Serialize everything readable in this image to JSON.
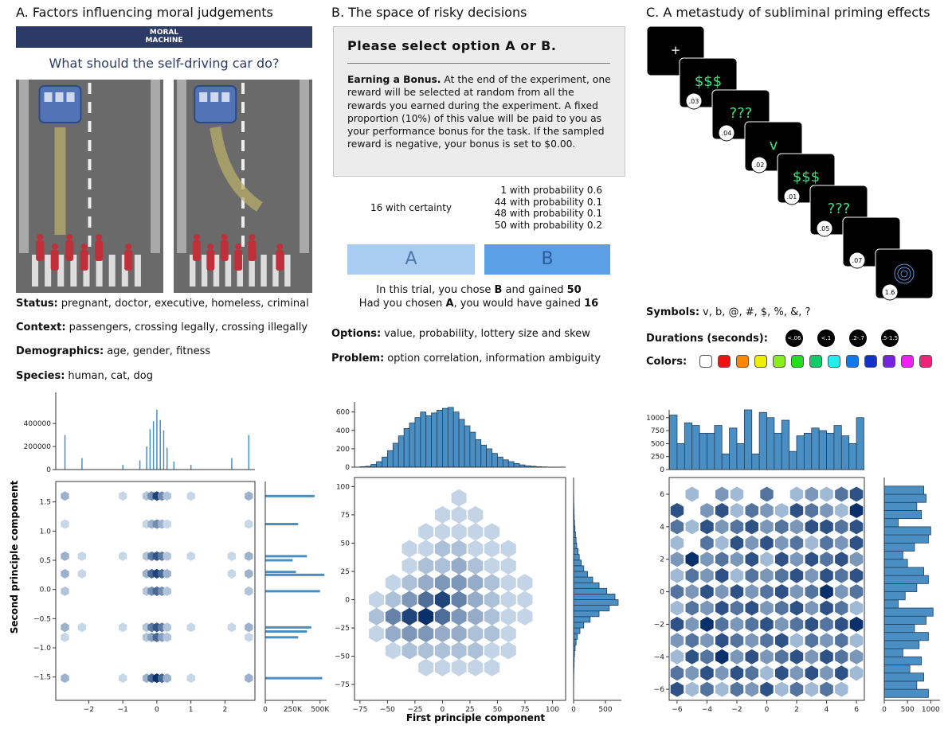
{
  "panel_a": {
    "title": "A. Factors influencing moral judgements",
    "banner": [
      "MORAL",
      "MACHINE"
    ],
    "question": "What should the self-driving car do?",
    "factors": [
      {
        "label": "Status:",
        "text": "pregnant, doctor, executive, homeless, criminal"
      },
      {
        "label": "Context:",
        "text": "passengers, crossing legally, crossing illegally"
      },
      {
        "label": "Demographics:",
        "text": "age, gender, fitness"
      },
      {
        "label": "Species:",
        "text": "human, cat, dog"
      }
    ]
  },
  "panel_b": {
    "title": "B. The space of risky decisions",
    "dialog": {
      "heading": "Please select option A or B.",
      "bonus_label": "Earning a Bonus.",
      "bonus_text": "At the end of the experiment, one reward will be selected at random from all the rewards you earned during the experiment. A fixed proportion (10%) of this value will be paid to you as your performance bonus for the task. If the sampled reward is negative, your bonus is set to $0.00."
    },
    "option_a": "16 with certainty",
    "option_b": [
      "1 with probability 0.6",
      "44 with probability 0.1",
      "48 with probability 0.1",
      "50 with probability 0.2"
    ],
    "buttons": [
      "A",
      "B"
    ],
    "result": [
      [
        "In this trial, you chose ",
        "B",
        " and gained ",
        "50"
      ],
      [
        "Had you chosen ",
        "A",
        ", you would have gained ",
        "16"
      ]
    ],
    "factors": [
      {
        "label": "Options:",
        "text": "value, probability, lottery size and skew"
      },
      {
        "label": "Problem:",
        "text": "option correlation, information ambiguity"
      }
    ]
  },
  "panel_c": {
    "title": "C. A metastudy of subliminal priming effects",
    "trials": [
      {
        "symbol": "+"
      },
      {
        "symbol": "$$$",
        "duration": ".03"
      },
      {
        "symbol": "???",
        "duration": ".04"
      },
      {
        "symbol": "v",
        "duration": ".02"
      },
      {
        "symbol": "$$$",
        "duration": ".01"
      },
      {
        "symbol": "???",
        "duration": ".05"
      },
      {
        "duration": ".07"
      },
      {
        "duration": "1.6"
      }
    ],
    "symbols_label": "Symbols:",
    "symbols": "v, b, @, #, $, %, &, ?",
    "durations_label": "Durations (seconds):",
    "durations": [
      "<.06",
      "<.1",
      ".2-.7",
      ".5-1.5"
    ],
    "colors_label": "Colors:",
    "colors": [
      "#ffffff",
      "#ee1111",
      "#ff8800",
      "#eeee00",
      "#88ee22",
      "#22dd22",
      "#11cc66",
      "#22eeee",
      "#1177ee",
      "#1133cc",
      "#7722dd",
      "#ee22ee",
      "#ee2277"
    ]
  },
  "axis_labels": {
    "x": "First principle component",
    "y": "Second principle component"
  },
  "chart_data": [
    {
      "type": "jointplot",
      "marginal_x": {
        "type": "spikes",
        "x": [
          -2.7,
          -2.2,
          -1.0,
          -0.5,
          -0.3,
          -0.2,
          -0.1,
          0,
          0.1,
          0.2,
          0.3,
          0.5,
          1.0,
          2.2,
          2.7
        ],
        "values": [
          300000,
          100000,
          40000,
          80000,
          200000,
          350000,
          420000,
          520000,
          430000,
          340000,
          190000,
          70000,
          40000,
          100000,
          300000
        ],
        "ylim": [
          0,
          670000
        ],
        "yticks": [
          0,
          200000,
          400000
        ],
        "color": "#4a8fc4"
      },
      "main": {
        "type": "hexbin",
        "x": [
          -2.7,
          -2.2,
          -1.0,
          -0.3,
          -0.15,
          0,
          0.15,
          0.3,
          1.0,
          2.2,
          2.7
        ],
        "y": [
          1.6,
          1.12,
          0.57,
          0.27,
          -0.03,
          -0.65,
          -0.82,
          -1.52
        ],
        "counts": [
          [
            3,
            0,
            1,
            2,
            5,
            9,
            5,
            2,
            1,
            0,
            3
          ],
          [
            1,
            0,
            0,
            1,
            3,
            5,
            3,
            1,
            0,
            0,
            1
          ],
          [
            3,
            1,
            1,
            2,
            6,
            8,
            6,
            2,
            1,
            1,
            3
          ],
          [
            3,
            1,
            0,
            3,
            7,
            9,
            7,
            3,
            0,
            1,
            3
          ],
          [
            2,
            0,
            0,
            2,
            5,
            7,
            5,
            2,
            0,
            0,
            2
          ],
          [
            3,
            1,
            1,
            2,
            6,
            8,
            6,
            2,
            1,
            1,
            3
          ],
          [
            1,
            0,
            0,
            2,
            4,
            7,
            4,
            2,
            0,
            0,
            1
          ],
          [
            3,
            0,
            1,
            3,
            7,
            10,
            7,
            3,
            1,
            0,
            3
          ]
        ],
        "xlim": [
          -2.97,
          2.88
        ],
        "ylim": [
          -1.9,
          1.85
        ],
        "xticks": [
          {
            "value": -2,
            "label": "−2"
          },
          {
            "value": -1,
            "label": "−1"
          },
          0,
          1,
          2
        ],
        "yticks": [
          {
            "value": -1.5,
            "label": "−1.5"
          },
          {
            "value": -1.0,
            "label": "−1.0"
          },
          {
            "value": -0.5,
            "label": "−0.5"
          },
          {
            "value": 0,
            "label": "0.0"
          },
          0.5,
          {
            "value": 1.0,
            "label": "1.0"
          },
          1.5
        ],
        "cmap": [
          "#dbe9f6",
          "#08306b"
        ]
      },
      "marginal_y": {
        "type": "barh",
        "y": [
          1.6,
          1.12,
          0.57,
          0.5,
          0.3,
          0.25,
          -0.03,
          -0.65,
          -0.72,
          -0.82,
          -1.52
        ],
        "values": [
          450000,
          300000,
          380000,
          250000,
          280000,
          540000,
          500000,
          420000,
          380000,
          300000,
          520000
        ],
        "xlim": [
          0,
          560000
        ],
        "xticks": [
          0,
          {
            "value": 250000,
            "label": "250K"
          },
          {
            "value": 500000,
            "label": "500K"
          }
        ],
        "color": "#4a8fc4"
      }
    },
    {
      "type": "jointplot",
      "marginal_x": {
        "type": "histogram",
        "bins": [
          -75,
          -70,
          -65,
          -60,
          -55,
          -50,
          -45,
          -40,
          -35,
          -30,
          -25,
          -20,
          -15,
          -10,
          -5,
          0,
          5,
          10,
          15,
          20,
          25,
          30,
          35,
          40,
          45,
          50,
          55,
          60,
          65,
          70,
          75,
          80,
          85,
          90,
          95,
          100
        ],
        "counts": [
          5,
          10,
          30,
          60,
          110,
          180,
          260,
          340,
          420,
          480,
          540,
          600,
          560,
          590,
          620,
          640,
          650,
          600,
          520,
          450,
          380,
          300,
          240,
          200,
          150,
          110,
          80,
          60,
          40,
          25,
          15,
          10,
          5,
          3,
          1
        ],
        "ylim": [
          0,
          710
        ],
        "yticks": [
          0,
          200,
          400,
          600
        ],
        "color": "#4a8fc4",
        "edgecolor": "#23405c"
      },
      "main": {
        "type": "hexbin",
        "x": [
          -60,
          -45,
          -30,
          -15,
          0,
          15,
          30,
          45,
          60,
          75,
          90
        ],
        "y": [
          90,
          75,
          60,
          45,
          30,
          15,
          0,
          -15,
          -30,
          -45,
          -60
        ],
        "counts": [
          [
            0,
            0,
            0,
            0,
            0,
            1,
            0,
            0,
            0,
            0,
            0
          ],
          [
            0,
            0,
            0,
            0,
            1,
            1,
            1,
            0,
            0,
            0,
            0
          ],
          [
            0,
            0,
            0,
            1,
            1,
            1,
            1,
            1,
            0,
            0,
            0
          ],
          [
            0,
            0,
            1,
            1,
            2,
            2,
            1,
            1,
            1,
            0,
            0
          ],
          [
            0,
            0,
            1,
            2,
            2,
            3,
            2,
            1,
            1,
            0,
            0
          ],
          [
            0,
            1,
            2,
            3,
            4,
            4,
            3,
            2,
            1,
            1,
            0
          ],
          [
            1,
            2,
            4,
            6,
            8,
            5,
            3,
            2,
            1,
            1,
            0
          ],
          [
            2,
            5,
            8,
            9,
            6,
            4,
            3,
            2,
            1,
            1,
            0
          ],
          [
            1,
            3,
            4,
            4,
            3,
            3,
            2,
            2,
            1,
            0,
            0
          ],
          [
            0,
            1,
            2,
            2,
            2,
            2,
            2,
            1,
            1,
            0,
            0
          ],
          [
            0,
            0,
            0,
            1,
            1,
            1,
            1,
            1,
            0,
            0,
            0
          ]
        ],
        "xlim": [
          -80,
          112
        ],
        "ylim": [
          -89,
          108
        ],
        "xticks": [
          {
            "value": -75,
            "label": "−75"
          },
          {
            "value": -50,
            "label": "−50"
          },
          {
            "value": -25,
            "label": "−25"
          },
          0,
          25,
          50,
          75,
          100
        ],
        "yticks": [
          {
            "value": -75,
            "label": "−75"
          },
          {
            "value": -50,
            "label": "−50"
          },
          {
            "value": -25,
            "label": "−25"
          },
          0,
          25,
          50,
          75,
          100
        ],
        "cmap": [
          "#dbe9f6",
          "#08306b"
        ]
      },
      "marginal_y": {
        "type": "histogram",
        "orientation": "horizontal",
        "bins": [
          -75,
          -70,
          -65,
          -60,
          -55,
          -50,
          -45,
          -40,
          -35,
          -30,
          -25,
          -20,
          -15,
          -10,
          -5,
          0,
          5,
          10,
          15,
          20,
          25,
          30,
          35,
          40,
          45,
          50,
          55,
          60,
          65,
          70,
          75,
          80,
          85,
          90,
          95,
          100
        ],
        "counts": [
          2,
          3,
          5,
          8,
          10,
          15,
          25,
          40,
          60,
          100,
          160,
          260,
          400,
          560,
          700,
          650,
          520,
          400,
          300,
          220,
          160,
          120,
          90,
          70,
          50,
          40,
          30,
          22,
          15,
          10,
          8,
          5,
          3,
          2,
          1
        ],
        "xlim": [
          0,
          750
        ],
        "xticks": [
          0,
          500
        ],
        "color": "#4a8fc4",
        "edgecolor": "#23405c"
      }
    },
    {
      "type": "jointplot",
      "marginal_x": {
        "type": "histogram",
        "bins": [
          -6.5,
          -6,
          -5.5,
          -5,
          -4.5,
          -4,
          -3.5,
          -3,
          -2.5,
          -2,
          -1.5,
          -1,
          -0.5,
          0,
          0.5,
          1,
          1.5,
          2,
          2.5,
          3,
          3.5,
          4,
          4.5,
          5,
          5.5,
          6,
          6.5
        ],
        "counts": [
          1050,
          500,
          900,
          850,
          700,
          700,
          850,
          300,
          800,
          500,
          1150,
          300,
          1100,
          1000,
          700,
          950,
          350,
          650,
          700,
          800,
          750,
          700,
          850,
          650,
          500,
          1000
        ],
        "ylim": [
          0,
          1150
        ],
        "yticks": [
          0,
          250,
          500,
          750,
          1000
        ],
        "color": "#4a8fc4",
        "edgecolor": "#23405c"
      },
      "main": {
        "type": "hexbin",
        "x": [
          -6,
          -5,
          -4,
          -3,
          -2,
          -1,
          0,
          1,
          2,
          3,
          4,
          5,
          6
        ],
        "y": [
          6,
          5,
          4,
          3,
          2,
          1,
          0,
          -1,
          -2,
          -3,
          -4,
          -5,
          -6
        ],
        "counts": [
          [
            0,
            1,
            0,
            2,
            1,
            0,
            3,
            0,
            1,
            2,
            1,
            3,
            4
          ],
          [
            4,
            0,
            2,
            4,
            1,
            3,
            2,
            1,
            4,
            3,
            2,
            1,
            5
          ],
          [
            3,
            1,
            4,
            2,
            3,
            4,
            2,
            3,
            2,
            4,
            4,
            3,
            4
          ],
          [
            1,
            0,
            3,
            1,
            4,
            2,
            4,
            2,
            3,
            1,
            3,
            2,
            4
          ],
          [
            2,
            5,
            2,
            3,
            2,
            4,
            1,
            4,
            2,
            4,
            3,
            4,
            2
          ],
          [
            1,
            3,
            2,
            4,
            1,
            3,
            2,
            3,
            4,
            2,
            4,
            3,
            4
          ],
          [
            3,
            2,
            4,
            2,
            4,
            2,
            3,
            4,
            2,
            3,
            5,
            2,
            3
          ],
          [
            1,
            3,
            2,
            4,
            3,
            4,
            2,
            3,
            4,
            2,
            4,
            3,
            1
          ],
          [
            4,
            2,
            5,
            3,
            2,
            3,
            4,
            2,
            3,
            4,
            3,
            4,
            5
          ],
          [
            2,
            3,
            2,
            4,
            3,
            2,
            3,
            4,
            1,
            3,
            2,
            3,
            1
          ],
          [
            1,
            4,
            3,
            5,
            2,
            4,
            2,
            3,
            4,
            2,
            4,
            3,
            2
          ],
          [
            3,
            2,
            4,
            2,
            4,
            3,
            1,
            4,
            2,
            4,
            2,
            4,
            1
          ],
          [
            4,
            1,
            3,
            1,
            3,
            2,
            4,
            1,
            3,
            1,
            3,
            1,
            0
          ]
        ],
        "xlim": [
          -6.53,
          6.53
        ],
        "ylim": [
          -6.68,
          7.03
        ],
        "xticks": [
          {
            "value": -6,
            "label": "−6"
          },
          {
            "value": -4,
            "label": "−4"
          },
          {
            "value": -2,
            "label": "−2"
          },
          0,
          2,
          4,
          6
        ],
        "yticks": [
          {
            "value": -6,
            "label": "−6"
          },
          {
            "value": -4,
            "label": "−4"
          },
          {
            "value": -2,
            "label": "−2"
          },
          0,
          2,
          4,
          6
        ],
        "cmap": [
          "#c6dbef",
          "#08306b"
        ]
      },
      "marginal_y": {
        "type": "histogram",
        "orientation": "horizontal",
        "bins": [
          -6.5,
          -6,
          -5.5,
          -5,
          -4.5,
          -4,
          -3.5,
          -3,
          -2.5,
          -2,
          -1.5,
          -1,
          -0.5,
          0,
          0.5,
          1,
          1.5,
          2,
          2.5,
          3,
          3.5,
          4,
          4.5,
          5,
          5.5,
          6,
          6.5
        ],
        "counts": [
          950,
          700,
          850,
          550,
          800,
          400,
          750,
          950,
          650,
          900,
          1050,
          300,
          450,
          700,
          950,
          850,
          500,
          400,
          650,
          950,
          1000,
          300,
          800,
          700,
          900,
          850
        ],
        "xlim": [
          0,
          1200
        ],
        "xticks": [
          0,
          500,
          1000
        ],
        "color": "#4a8fc4",
        "edgecolor": "#23405c"
      }
    }
  ]
}
